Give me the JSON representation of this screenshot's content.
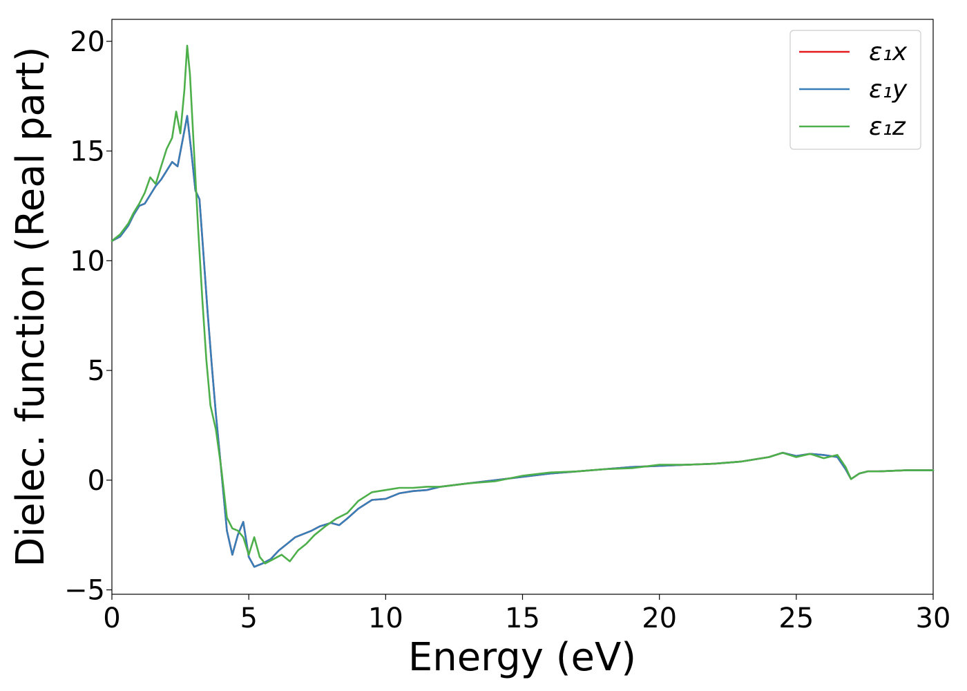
{
  "chart_data": {
    "type": "line",
    "xlabel": "Energy (eV)",
    "ylabel": "Dielec. function (Real part)",
    "xlim": [
      0,
      30
    ],
    "ylim": [
      -5.2,
      21
    ],
    "x_ticks": [
      0,
      5,
      10,
      15,
      20,
      25,
      30
    ],
    "x_tick_labels": [
      "0",
      "5",
      "10",
      "15",
      "20",
      "25",
      "30"
    ],
    "y_ticks": [
      -5,
      0,
      5,
      10,
      15,
      20
    ],
    "y_tick_labels": [
      "−5",
      "0",
      "5",
      "10",
      "15",
      "20"
    ],
    "grid": false,
    "legend_position": "top-right",
    "series": [
      {
        "name": "ε₁x",
        "color": "#e41a1c",
        "x": [
          0,
          0.3,
          0.6,
          0.8,
          1.0,
          1.2,
          1.4,
          1.6,
          1.8,
          2.0,
          2.2,
          2.4,
          2.6,
          2.75,
          2.9,
          3.05,
          3.2,
          3.35,
          3.5,
          3.65,
          3.8,
          4.0,
          4.2,
          4.4,
          4.6,
          4.8,
          5.0,
          5.2,
          5.5,
          5.8,
          6.1,
          6.4,
          6.7,
          7.0,
          7.3,
          7.6,
          8.0,
          8.3,
          8.6,
          9.0,
          9.5,
          10.0,
          10.5,
          11.0,
          11.5,
          12.0,
          13.0,
          14.0,
          15.0,
          16.0,
          17.0,
          18.0,
          19.0,
          20.0,
          21.0,
          22.0,
          23.0,
          24.0,
          24.5,
          25.0,
          25.5,
          26.0,
          26.5,
          26.8,
          27.0,
          27.3,
          27.6,
          28.0,
          29.0,
          30.0
        ],
        "y": [
          10.9,
          11.1,
          11.6,
          12.1,
          12.5,
          12.6,
          13.0,
          13.4,
          13.7,
          14.1,
          14.5,
          14.3,
          15.6,
          16.6,
          15.0,
          13.2,
          12.8,
          10.2,
          7.6,
          5.2,
          3.0,
          0.4,
          -2.3,
          -3.4,
          -2.5,
          -1.9,
          -3.5,
          -3.95,
          -3.8,
          -3.6,
          -3.2,
          -2.9,
          -2.6,
          -2.45,
          -2.3,
          -2.1,
          -1.95,
          -2.05,
          -1.75,
          -1.3,
          -0.9,
          -0.85,
          -0.6,
          -0.5,
          -0.45,
          -0.3,
          -0.15,
          0.0,
          0.15,
          0.3,
          0.4,
          0.5,
          0.6,
          0.65,
          0.7,
          0.75,
          0.85,
          1.05,
          1.25,
          1.1,
          1.2,
          1.15,
          1.05,
          0.5,
          0.05,
          0.3,
          0.4,
          0.4,
          0.45,
          0.45
        ]
      },
      {
        "name": "ε₁y",
        "color": "#377eb8",
        "x": [
          0,
          0.3,
          0.6,
          0.8,
          1.0,
          1.2,
          1.4,
          1.6,
          1.8,
          2.0,
          2.2,
          2.4,
          2.6,
          2.75,
          2.9,
          3.05,
          3.2,
          3.35,
          3.5,
          3.65,
          3.8,
          4.0,
          4.2,
          4.4,
          4.6,
          4.8,
          5.0,
          5.2,
          5.5,
          5.8,
          6.1,
          6.4,
          6.7,
          7.0,
          7.3,
          7.6,
          8.0,
          8.3,
          8.6,
          9.0,
          9.5,
          10.0,
          10.5,
          11.0,
          11.5,
          12.0,
          13.0,
          14.0,
          15.0,
          16.0,
          17.0,
          18.0,
          19.0,
          20.0,
          21.0,
          22.0,
          23.0,
          24.0,
          24.5,
          25.0,
          25.5,
          26.0,
          26.5,
          26.8,
          27.0,
          27.3,
          27.6,
          28.0,
          29.0,
          30.0
        ],
        "y": [
          10.9,
          11.1,
          11.6,
          12.1,
          12.5,
          12.6,
          13.0,
          13.4,
          13.7,
          14.1,
          14.5,
          14.3,
          15.6,
          16.6,
          15.0,
          13.2,
          12.8,
          10.2,
          7.6,
          5.2,
          3.0,
          0.4,
          -2.3,
          -3.4,
          -2.5,
          -1.9,
          -3.5,
          -3.95,
          -3.8,
          -3.6,
          -3.2,
          -2.9,
          -2.6,
          -2.45,
          -2.3,
          -2.1,
          -1.95,
          -2.05,
          -1.75,
          -1.3,
          -0.9,
          -0.85,
          -0.6,
          -0.5,
          -0.45,
          -0.3,
          -0.15,
          0.0,
          0.15,
          0.3,
          0.4,
          0.5,
          0.6,
          0.65,
          0.7,
          0.75,
          0.85,
          1.05,
          1.25,
          1.1,
          1.2,
          1.15,
          1.05,
          0.5,
          0.05,
          0.3,
          0.4,
          0.4,
          0.45,
          0.45
        ]
      },
      {
        "name": "ε₁z",
        "color": "#4daf4a",
        "x": [
          0,
          0.3,
          0.6,
          0.8,
          1.0,
          1.2,
          1.4,
          1.6,
          1.8,
          2.0,
          2.2,
          2.35,
          2.5,
          2.65,
          2.75,
          2.85,
          3.0,
          3.15,
          3.3,
          3.45,
          3.6,
          3.8,
          4.0,
          4.2,
          4.4,
          4.6,
          4.8,
          5.0,
          5.2,
          5.4,
          5.6,
          5.9,
          6.2,
          6.5,
          6.8,
          7.1,
          7.4,
          7.8,
          8.2,
          8.6,
          9.0,
          9.5,
          10.0,
          10.5,
          11.0,
          11.5,
          12.0,
          13.0,
          14.0,
          15.0,
          16.0,
          17.0,
          18.0,
          19.0,
          20.0,
          21.0,
          22.0,
          23.0,
          24.0,
          24.5,
          25.0,
          25.5,
          26.0,
          26.5,
          26.8,
          27.0,
          27.3,
          27.6,
          28.0,
          29.0,
          30.0
        ],
        "y": [
          10.9,
          11.2,
          11.7,
          12.2,
          12.6,
          13.1,
          13.8,
          13.5,
          14.3,
          15.1,
          15.6,
          16.8,
          15.8,
          17.8,
          19.8,
          18.5,
          15.0,
          11.5,
          8.3,
          5.5,
          3.4,
          2.3,
          0.5,
          -1.7,
          -2.2,
          -2.3,
          -2.6,
          -3.4,
          -2.6,
          -3.5,
          -3.8,
          -3.6,
          -3.4,
          -3.7,
          -3.2,
          -2.9,
          -2.5,
          -2.1,
          -1.75,
          -1.5,
          -0.95,
          -0.55,
          -0.45,
          -0.35,
          -0.35,
          -0.3,
          -0.3,
          -0.15,
          -0.05,
          0.2,
          0.35,
          0.4,
          0.5,
          0.55,
          0.7,
          0.7,
          0.75,
          0.85,
          1.05,
          1.25,
          1.05,
          1.2,
          1.0,
          1.15,
          0.6,
          0.05,
          0.3,
          0.4,
          0.4,
          0.45,
          0.45
        ]
      }
    ]
  }
}
